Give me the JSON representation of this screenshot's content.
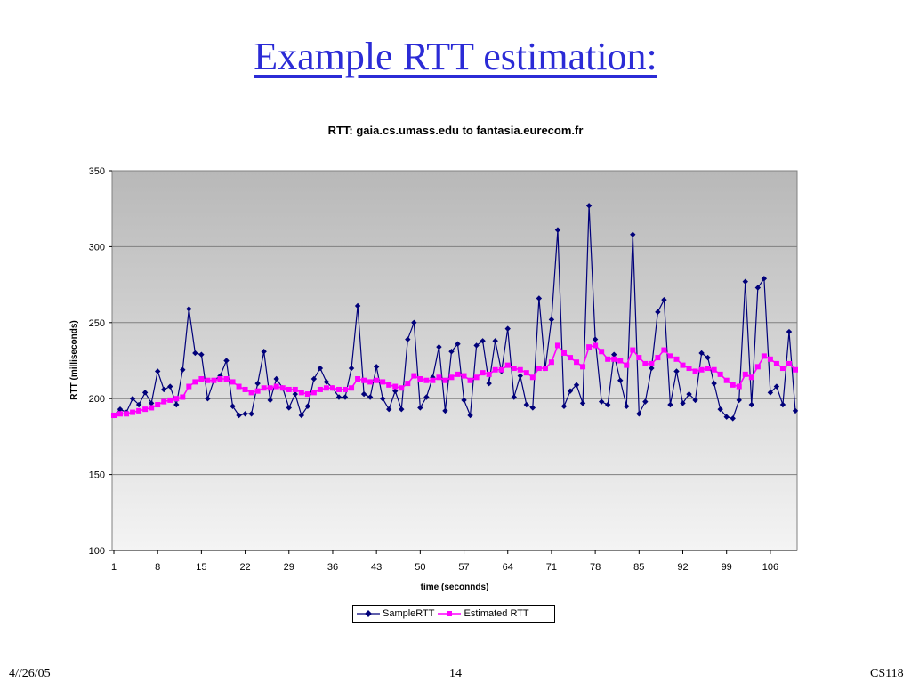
{
  "slide": {
    "title": "Example RTT estimation:",
    "footer_date": "4//26/05",
    "footer_page": "14",
    "footer_course": "CS118"
  },
  "colors": {
    "sample": "#00007a",
    "estimated": "#ff00ff",
    "plot_bg_top": "#b8b8b8",
    "plot_bg_bottom": "#f4f4f4",
    "grid": "#808080"
  },
  "chart_data": {
    "type": "line",
    "title": "RTT: gaia.cs.umass.edu to fantasia.eurecom.fr",
    "xlabel": "time (seconnds)",
    "ylabel": "RTT (milliseconds)",
    "ylim": [
      100,
      350
    ],
    "yticks": [
      100,
      150,
      200,
      250,
      300,
      350
    ],
    "xlim": [
      1,
      110
    ],
    "xticks": [
      "1",
      "8",
      "15",
      "22",
      "29",
      "36",
      "43",
      "50",
      "57",
      "64",
      "71",
      "78",
      "85",
      "92",
      "99",
      "106"
    ],
    "grid": "horizontal",
    "legend_position": "bottom",
    "series": [
      {
        "name": "SampleRTT",
        "marker": "diamond",
        "values": [
          189,
          193,
          191,
          200,
          196,
          204,
          197,
          218,
          206,
          208,
          196,
          219,
          259,
          230,
          229,
          200,
          212,
          215,
          225,
          195,
          189,
          190,
          190,
          210,
          231,
          199,
          213,
          207,
          194,
          203,
          189,
          195,
          213,
          220,
          211,
          207,
          201,
          201,
          220,
          261,
          203,
          201,
          221,
          200,
          193,
          205,
          193,
          239,
          250,
          194,
          201,
          214,
          234,
          192,
          231,
          236,
          199,
          189,
          235,
          238,
          210,
          238,
          218,
          246,
          201,
          215,
          196,
          194,
          266,
          220,
          252,
          311,
          195,
          205,
          209,
          197,
          327,
          239,
          198,
          196,
          229,
          212,
          195,
          308,
          190,
          198,
          220,
          257,
          265,
          196,
          218,
          197,
          203,
          199,
          230,
          227,
          210,
          193,
          188,
          187,
          199,
          277,
          196,
          273,
          279,
          204,
          208,
          196,
          244,
          192
        ]
      },
      {
        "name": "Estimated RTT",
        "marker": "square",
        "values": [
          189,
          190,
          190,
          191,
          192,
          193,
          194,
          196,
          198,
          199,
          200,
          201,
          208,
          211,
          213,
          212,
          212,
          213,
          213,
          211,
          208,
          206,
          204,
          205,
          207,
          207,
          208,
          207,
          206,
          206,
          204,
          203,
          204,
          206,
          207,
          207,
          206,
          206,
          207,
          213,
          212,
          211,
          212,
          211,
          209,
          208,
          207,
          210,
          215,
          213,
          212,
          212,
          214,
          212,
          214,
          216,
          215,
          212,
          214,
          217,
          216,
          219,
          219,
          222,
          220,
          219,
          217,
          214,
          220,
          220,
          224,
          235,
          230,
          227,
          224,
          221,
          234,
          235,
          231,
          226,
          226,
          225,
          222,
          232,
          227,
          223,
          223,
          227,
          232,
          228,
          226,
          222,
          220,
          218,
          219,
          220,
          219,
          216,
          212,
          209,
          208,
          216,
          214,
          221,
          228,
          226,
          223,
          220,
          223,
          219
        ]
      }
    ]
  }
}
